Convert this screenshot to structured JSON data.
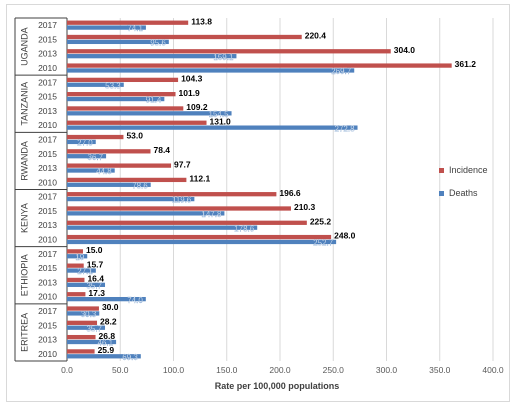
{
  "chart_data": {
    "type": "bar",
    "orientation": "horizontal",
    "xlabel": "Rate per 100,000 populations",
    "xlim": [
      0,
      400
    ],
    "x_ticks": [
      "0.0",
      "50.0",
      "100.0",
      "150.0",
      "200.0",
      "250.0",
      "300.0",
      "350.0",
      "400.0"
    ],
    "grid": true,
    "legend_position": "right",
    "series": [
      {
        "name": "Incidence",
        "color": "#c0504d"
      },
      {
        "name": "Deaths",
        "color": "#4f81bd"
      }
    ],
    "groups": [
      {
        "country": "UGANDA",
        "rows": [
          {
            "year": "2017",
            "incidence": 113.8,
            "incidence_label": "113.8",
            "deaths": 74.1,
            "deaths_label": "74.1"
          },
          {
            "year": "2015",
            "incidence": 220.4,
            "incidence_label": "220.4",
            "deaths": 95.6,
            "deaths_label": "95.6"
          },
          {
            "year": "2013",
            "incidence": 304.0,
            "incidence_label": "304.0",
            "deaths": 159.1,
            "deaths_label": "159.1"
          },
          {
            "year": "2010",
            "incidence": 361.2,
            "incidence_label": "361.2",
            "deaths": 269.7,
            "deaths_label": "269.7"
          }
        ]
      },
      {
        "country": "TANZANIA",
        "rows": [
          {
            "year": "2017",
            "incidence": 104.3,
            "incidence_label": "104.3",
            "deaths": 53.3,
            "deaths_label": "53.3"
          },
          {
            "year": "2015",
            "incidence": 101.9,
            "incidence_label": "101.9",
            "deaths": 91.4,
            "deaths_label": "91.4"
          },
          {
            "year": "2013",
            "incidence": 109.2,
            "incidence_label": "109.2",
            "deaths": 154.5,
            "deaths_label": "154.5"
          },
          {
            "year": "2010",
            "incidence": 131.0,
            "incidence_label": "131.0",
            "deaths": 272.8,
            "deaths_label": "272.8"
          }
        ]
      },
      {
        "country": "RWANDA",
        "rows": [
          {
            "year": "2017",
            "incidence": 53.0,
            "incidence_label": "53.0",
            "deaths": 27.0,
            "deaths_label": "27.0"
          },
          {
            "year": "2015",
            "incidence": 78.4,
            "incidence_label": "78.4",
            "deaths": 36.7,
            "deaths_label": "36.7"
          },
          {
            "year": "2013",
            "incidence": 97.7,
            "incidence_label": "97.7",
            "deaths": 44.8,
            "deaths_label": "44.8"
          },
          {
            "year": "2010",
            "incidence": 112.1,
            "incidence_label": "112.1",
            "deaths": 78.6,
            "deaths_label": "78.6"
          }
        ]
      },
      {
        "country": "KENYA",
        "rows": [
          {
            "year": "2017",
            "incidence": 196.6,
            "incidence_label": "196.6",
            "deaths": 119.6,
            "deaths_label": "119.6"
          },
          {
            "year": "2015",
            "incidence": 210.3,
            "incidence_label": "210.3",
            "deaths": 147.8,
            "deaths_label": "147.8"
          },
          {
            "year": "2013",
            "incidence": 225.2,
            "incidence_label": "225.2",
            "deaths": 178.6,
            "deaths_label": "178.6"
          },
          {
            "year": "2010",
            "incidence": 248.0,
            "incidence_label": "248.0",
            "deaths": 252.7,
            "deaths_label": "252.7"
          }
        ]
      },
      {
        "country": "ETHIOPIA",
        "rows": [
          {
            "year": "2017",
            "incidence": 15.0,
            "incidence_label": "15.0",
            "deaths": 19.0,
            "deaths_label": "19"
          },
          {
            "year": "2015",
            "incidence": 15.7,
            "incidence_label": "15.7",
            "deaths": 27.1,
            "deaths_label": "27.1"
          },
          {
            "year": "2013",
            "incidence": 16.4,
            "incidence_label": "16.4",
            "deaths": 35.7,
            "deaths_label": "35.7"
          },
          {
            "year": "2010",
            "incidence": 17.3,
            "incidence_label": "17.3",
            "deaths": 74.0,
            "deaths_label": "74.0"
          }
        ]
      },
      {
        "country": "ERITREA",
        "rows": [
          {
            "year": "2017",
            "incidence": 30.0,
            "incidence_label": "30.0",
            "deaths": 30.3,
            "deaths_label": "30.3"
          },
          {
            "year": "2015",
            "incidence": 28.2,
            "incidence_label": "28.2",
            "deaths": 35.7,
            "deaths_label": "35.7"
          },
          {
            "year": "2013",
            "incidence": 26.8,
            "incidence_label": "26.8",
            "deaths": 46.1,
            "deaths_label": "46.1"
          },
          {
            "year": "2010",
            "incidence": 25.9,
            "incidence_label": "25.9",
            "deaths": 69.3,
            "deaths_label": "69.3"
          }
        ]
      }
    ]
  }
}
